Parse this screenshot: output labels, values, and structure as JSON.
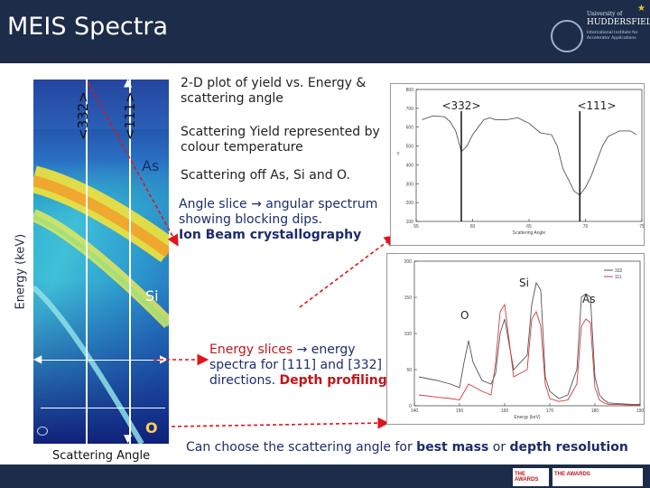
{
  "slide": {
    "title": "MEIS Spectra"
  },
  "logo": {
    "line1": "University of",
    "line2": "HUDDERSFIELD",
    "line3": "International Institute for Accelerator Applications"
  },
  "heatmap": {
    "label_332": "<332>",
    "label_111": "<111>",
    "label_as": "As",
    "label_si": "Si",
    "label_o": "O",
    "xlabel": "Scattering Angle",
    "ylabel": "Energy (keV)"
  },
  "text": {
    "b1": "2-D plot of yield vs. Energy & scattering angle",
    "b2": "Scattering Yield represented by colour temperature",
    "b3": "Scattering off As, Si and O.",
    "angle_slice": "Angle slice → angular spectrum showing blocking dips.",
    "crystallography": "Ion Beam crystallography",
    "energy_slices": "Energy slices",
    "energy_rest": " → energy spectra for [111] and [332] directions. ",
    "depth": "Depth profiling",
    "bottom_a": "Can choose the scattering angle for ",
    "bottom_b": "best mass",
    "bottom_c": " or ",
    "bottom_d": "depth resolution"
  },
  "chart_data": [
    {
      "type": "line",
      "title": "",
      "xlabel": "Scattering Angle",
      "ylabel": "Y",
      "xlim": [
        55,
        75
      ],
      "ylim": [
        100,
        800
      ],
      "xticks": [
        "55",
        "60",
        "65",
        "70",
        "75"
      ],
      "yticks": [
        "100",
        "200",
        "300",
        "400",
        "500",
        "600",
        "700",
        "800"
      ],
      "annotations": [
        "<332>",
        "<111>"
      ],
      "series": [
        {
          "name": "angular spectrum",
          "x": [
            55.5,
            56.5,
            57.5,
            58,
            58.5,
            59,
            59.5,
            60,
            60.5,
            61,
            61.5,
            62,
            63,
            64,
            65,
            66,
            67,
            67.5,
            68,
            68.5,
            69,
            69.5,
            70,
            70.5,
            71,
            71.5,
            72,
            73,
            74,
            74.5
          ],
          "y": [
            640,
            660,
            655,
            630,
            580,
            470,
            500,
            560,
            600,
            640,
            650,
            640,
            640,
            650,
            620,
            570,
            560,
            500,
            380,
            320,
            260,
            240,
            280,
            340,
            420,
            500,
            550,
            580,
            580,
            560
          ]
        }
      ]
    },
    {
      "type": "line",
      "title": "",
      "xlabel": "Energy (keV)",
      "ylabel": "",
      "xlim": [
        140,
        190
      ],
      "ylim": [
        0,
        200
      ],
      "xticks": [
        "140",
        "150",
        "160",
        "170",
        "180",
        "190"
      ],
      "yticks": [
        "0",
        "50",
        "100",
        "150",
        "200"
      ],
      "annotations": [
        "Si",
        "As",
        "O"
      ],
      "legend": [
        "332",
        "111"
      ],
      "series": [
        {
          "name": "332",
          "x": [
            141,
            145,
            148,
            150,
            151,
            152,
            153,
            155,
            157,
            158,
            159,
            160,
            162,
            165,
            166,
            167,
            168,
            169,
            170,
            172,
            174,
            176,
            177,
            178,
            179,
            180,
            181,
            182,
            183,
            185,
            188,
            190
          ],
          "y": [
            40,
            35,
            30,
            25,
            60,
            90,
            60,
            35,
            30,
            45,
            100,
            120,
            50,
            70,
            140,
            170,
            160,
            40,
            20,
            10,
            15,
            50,
            150,
            155,
            150,
            40,
            15,
            8,
            4,
            3,
            2,
            2
          ]
        },
        {
          "name": "111",
          "x": [
            141,
            145,
            148,
            150,
            152,
            155,
            157,
            158,
            159,
            160,
            162,
            165,
            166,
            167,
            168,
            169,
            170,
            172,
            174,
            176,
            177,
            178,
            179,
            180,
            181,
            182,
            183,
            185,
            188,
            190
          ],
          "y": [
            15,
            12,
            10,
            8,
            30,
            20,
            15,
            60,
            130,
            140,
            40,
            50,
            120,
            130,
            110,
            30,
            10,
            6,
            8,
            30,
            110,
            120,
            115,
            25,
            8,
            4,
            2,
            2,
            1,
            1
          ]
        }
      ]
    }
  ],
  "colors": {
    "navy": "#1d2c48",
    "red": "#c0151b",
    "blue": "#1d2c6e"
  }
}
